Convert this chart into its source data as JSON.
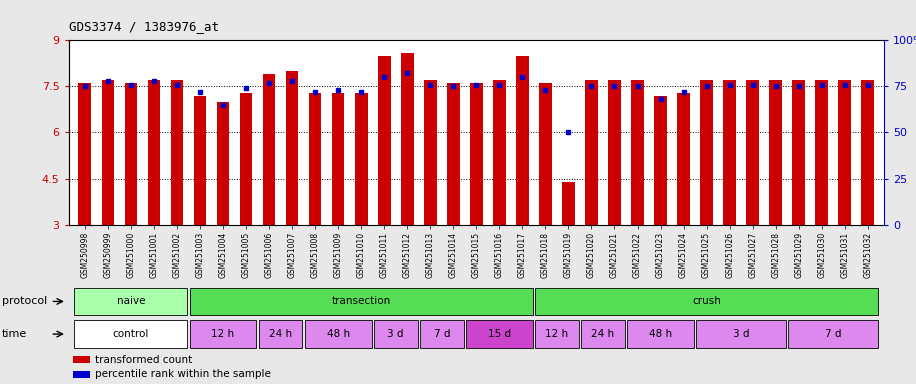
{
  "title": "GDS3374 / 1383976_at",
  "samples": [
    "GSM250998",
    "GSM250999",
    "GSM251000",
    "GSM251001",
    "GSM251002",
    "GSM251003",
    "GSM251004",
    "GSM251005",
    "GSM251006",
    "GSM251007",
    "GSM251008",
    "GSM251009",
    "GSM251010",
    "GSM251011",
    "GSM251012",
    "GSM251013",
    "GSM251014",
    "GSM251015",
    "GSM251016",
    "GSM251017",
    "GSM251018",
    "GSM251019",
    "GSM251020",
    "GSM251021",
    "GSM251022",
    "GSM251023",
    "GSM251024",
    "GSM251025",
    "GSM251026",
    "GSM251027",
    "GSM251028",
    "GSM251029",
    "GSM251030",
    "GSM251031",
    "GSM251032"
  ],
  "red_values": [
    7.6,
    7.7,
    7.6,
    7.7,
    7.7,
    7.2,
    7.0,
    7.3,
    7.9,
    8.0,
    7.3,
    7.3,
    7.3,
    8.5,
    8.6,
    7.7,
    7.6,
    7.6,
    7.7,
    8.5,
    7.6,
    4.4,
    7.7,
    7.7,
    7.7,
    7.2,
    7.3,
    7.7,
    7.7,
    7.7,
    7.7,
    7.7,
    7.7,
    7.7,
    7.7
  ],
  "blue_values": [
    75,
    78,
    76,
    78,
    76,
    72,
    65,
    74,
    77,
    78,
    72,
    73,
    72,
    80,
    82,
    76,
    75,
    76,
    76,
    80,
    73,
    50,
    75,
    75,
    75,
    68,
    72,
    75,
    76,
    76,
    75,
    75,
    76,
    76,
    76
  ],
  "ylim": [
    3,
    9
  ],
  "yticks": [
    3,
    4.5,
    6,
    7.5,
    9
  ],
  "ytick_labels": [
    "3",
    "4.5",
    "6",
    "7.5",
    "9"
  ],
  "y2lim": [
    0,
    100
  ],
  "y2ticks": [
    0,
    25,
    50,
    75,
    100
  ],
  "y2tick_labels": [
    "0",
    "25",
    "50",
    "75",
    "100%"
  ],
  "bar_color": "#cc0000",
  "blue_color": "#0000cc",
  "proto_data": [
    {
      "label": "naive",
      "start": 0,
      "end": 4,
      "color": "#aaffaa"
    },
    {
      "label": "transection",
      "start": 5,
      "end": 19,
      "color": "#55dd55"
    },
    {
      "label": "crush",
      "start": 20,
      "end": 34,
      "color": "#55dd55"
    }
  ],
  "time_data": [
    {
      "label": "control",
      "start": 0,
      "end": 4,
      "color": "#ffffff"
    },
    {
      "label": "12 h",
      "start": 5,
      "end": 7,
      "color": "#dd88ee"
    },
    {
      "label": "24 h",
      "start": 8,
      "end": 9,
      "color": "#dd88ee"
    },
    {
      "label": "48 h",
      "start": 10,
      "end": 12,
      "color": "#dd88ee"
    },
    {
      "label": "3 d",
      "start": 13,
      "end": 14,
      "color": "#dd88ee"
    },
    {
      "label": "7 d",
      "start": 15,
      "end": 16,
      "color": "#dd88ee"
    },
    {
      "label": "15 d",
      "start": 17,
      "end": 19,
      "color": "#cc44cc"
    },
    {
      "label": "12 h",
      "start": 20,
      "end": 21,
      "color": "#dd88ee"
    },
    {
      "label": "24 h",
      "start": 22,
      "end": 23,
      "color": "#dd88ee"
    },
    {
      "label": "48 h",
      "start": 24,
      "end": 26,
      "color": "#dd88ee"
    },
    {
      "label": "3 d",
      "start": 27,
      "end": 30,
      "color": "#dd88ee"
    },
    {
      "label": "7 d",
      "start": 31,
      "end": 34,
      "color": "#dd88ee"
    }
  ],
  "legend_items": [
    {
      "label": "transformed count",
      "color": "#cc0000"
    },
    {
      "label": "percentile rank within the sample",
      "color": "#0000cc"
    }
  ],
  "bg_color": "#e8e8e8",
  "chart_bg": "#ffffff"
}
